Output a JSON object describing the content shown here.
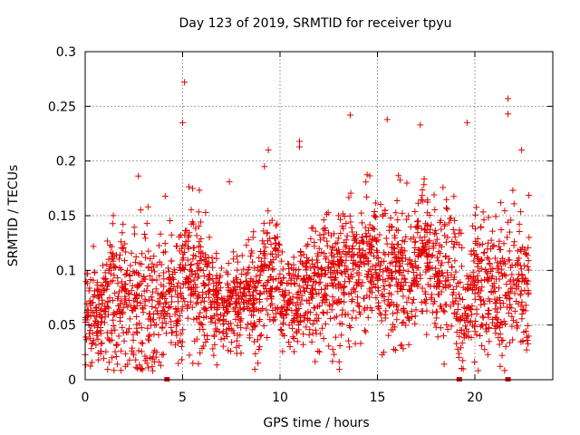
{
  "chart_data": {
    "type": "scatter",
    "title": "Day 123 of 2019, SRMTID for receiver tpyu",
    "xlabel": "GPS time / hours",
    "ylabel": "SRMTID / TECUs",
    "xlim": [
      0,
      24
    ],
    "ylim": [
      0,
      0.3
    ],
    "xticks": [
      0,
      5,
      10,
      15,
      20
    ],
    "xtick_labels": [
      "0",
      "5",
      "10",
      "15",
      "20"
    ],
    "yticks": [
      0,
      0.05,
      0.1,
      0.15,
      0.2,
      0.25,
      0.3
    ],
    "ytick_labels": [
      "0",
      "0.05",
      "0.1",
      "0.15",
      "0.2",
      "0.25",
      "0.3"
    ],
    "grid": true,
    "marker": "plus",
    "color": "#e00000",
    "zero_flags_x": [
      4.2,
      19.2,
      21.7
    ],
    "notable_points": [
      {
        "x": 5.1,
        "y": 0.272
      },
      {
        "x": 21.7,
        "y": 0.257
      },
      {
        "x": 21.7,
        "y": 0.243
      },
      {
        "x": 13.6,
        "y": 0.242
      },
      {
        "x": 15.5,
        "y": 0.238
      },
      {
        "x": 17.2,
        "y": 0.233
      },
      {
        "x": 19.6,
        "y": 0.235
      },
      {
        "x": 5.0,
        "y": 0.235
      },
      {
        "x": 9.4,
        "y": 0.21
      },
      {
        "x": 11.0,
        "y": 0.218
      },
      {
        "x": 11.0,
        "y": 0.213
      },
      {
        "x": 9.2,
        "y": 0.195
      },
      {
        "x": 22.4,
        "y": 0.21
      },
      {
        "x": 7.4,
        "y": 0.181
      }
    ],
    "segments": [
      {
        "x0": 0.0,
        "x1": 1.0,
        "mean": 0.062,
        "sd": 0.024,
        "n": 110
      },
      {
        "x0": 1.0,
        "x1": 2.0,
        "mean": 0.075,
        "sd": 0.035,
        "n": 110
      },
      {
        "x0": 2.0,
        "x1": 3.0,
        "mean": 0.072,
        "sd": 0.03,
        "n": 100
      },
      {
        "x0": 3.0,
        "x1": 4.0,
        "mean": 0.068,
        "sd": 0.028,
        "n": 95
      },
      {
        "x0": 4.0,
        "x1": 5.0,
        "mean": 0.078,
        "sd": 0.03,
        "n": 100
      },
      {
        "x0": 5.0,
        "x1": 6.0,
        "mean": 0.095,
        "sd": 0.032,
        "n": 115
      },
      {
        "x0": 6.0,
        "x1": 7.0,
        "mean": 0.074,
        "sd": 0.025,
        "n": 110
      },
      {
        "x0": 7.0,
        "x1": 8.0,
        "mean": 0.066,
        "sd": 0.02,
        "n": 110
      },
      {
        "x0": 8.0,
        "x1": 9.0,
        "mean": 0.078,
        "sd": 0.024,
        "n": 105
      },
      {
        "x0": 9.0,
        "x1": 10.0,
        "mean": 0.092,
        "sd": 0.028,
        "n": 105
      },
      {
        "x0": 10.0,
        "x1": 11.0,
        "mean": 0.07,
        "sd": 0.022,
        "n": 105
      },
      {
        "x0": 11.0,
        "x1": 12.0,
        "mean": 0.082,
        "sd": 0.025,
        "n": 110
      },
      {
        "x0": 12.0,
        "x1": 13.0,
        "mean": 0.09,
        "sd": 0.028,
        "n": 110
      },
      {
        "x0": 13.0,
        "x1": 14.0,
        "mean": 0.1,
        "sd": 0.032,
        "n": 115
      },
      {
        "x0": 14.0,
        "x1": 15.0,
        "mean": 0.105,
        "sd": 0.03,
        "n": 115
      },
      {
        "x0": 15.0,
        "x1": 16.0,
        "mean": 0.102,
        "sd": 0.03,
        "n": 110
      },
      {
        "x0": 16.0,
        "x1": 17.0,
        "mean": 0.1,
        "sd": 0.032,
        "n": 110
      },
      {
        "x0": 17.0,
        "x1": 18.0,
        "mean": 0.112,
        "sd": 0.034,
        "n": 110
      },
      {
        "x0": 18.0,
        "x1": 19.0,
        "mean": 0.092,
        "sd": 0.03,
        "n": 100
      },
      {
        "x0": 19.0,
        "x1": 20.0,
        "mean": 0.07,
        "sd": 0.032,
        "n": 95
      },
      {
        "x0": 20.0,
        "x1": 21.0,
        "mean": 0.092,
        "sd": 0.032,
        "n": 105
      },
      {
        "x0": 21.0,
        "x1": 22.0,
        "mean": 0.088,
        "sd": 0.034,
        "n": 100
      },
      {
        "x0": 22.0,
        "x1": 22.8,
        "mean": 0.085,
        "sd": 0.032,
        "n": 80
      }
    ]
  }
}
